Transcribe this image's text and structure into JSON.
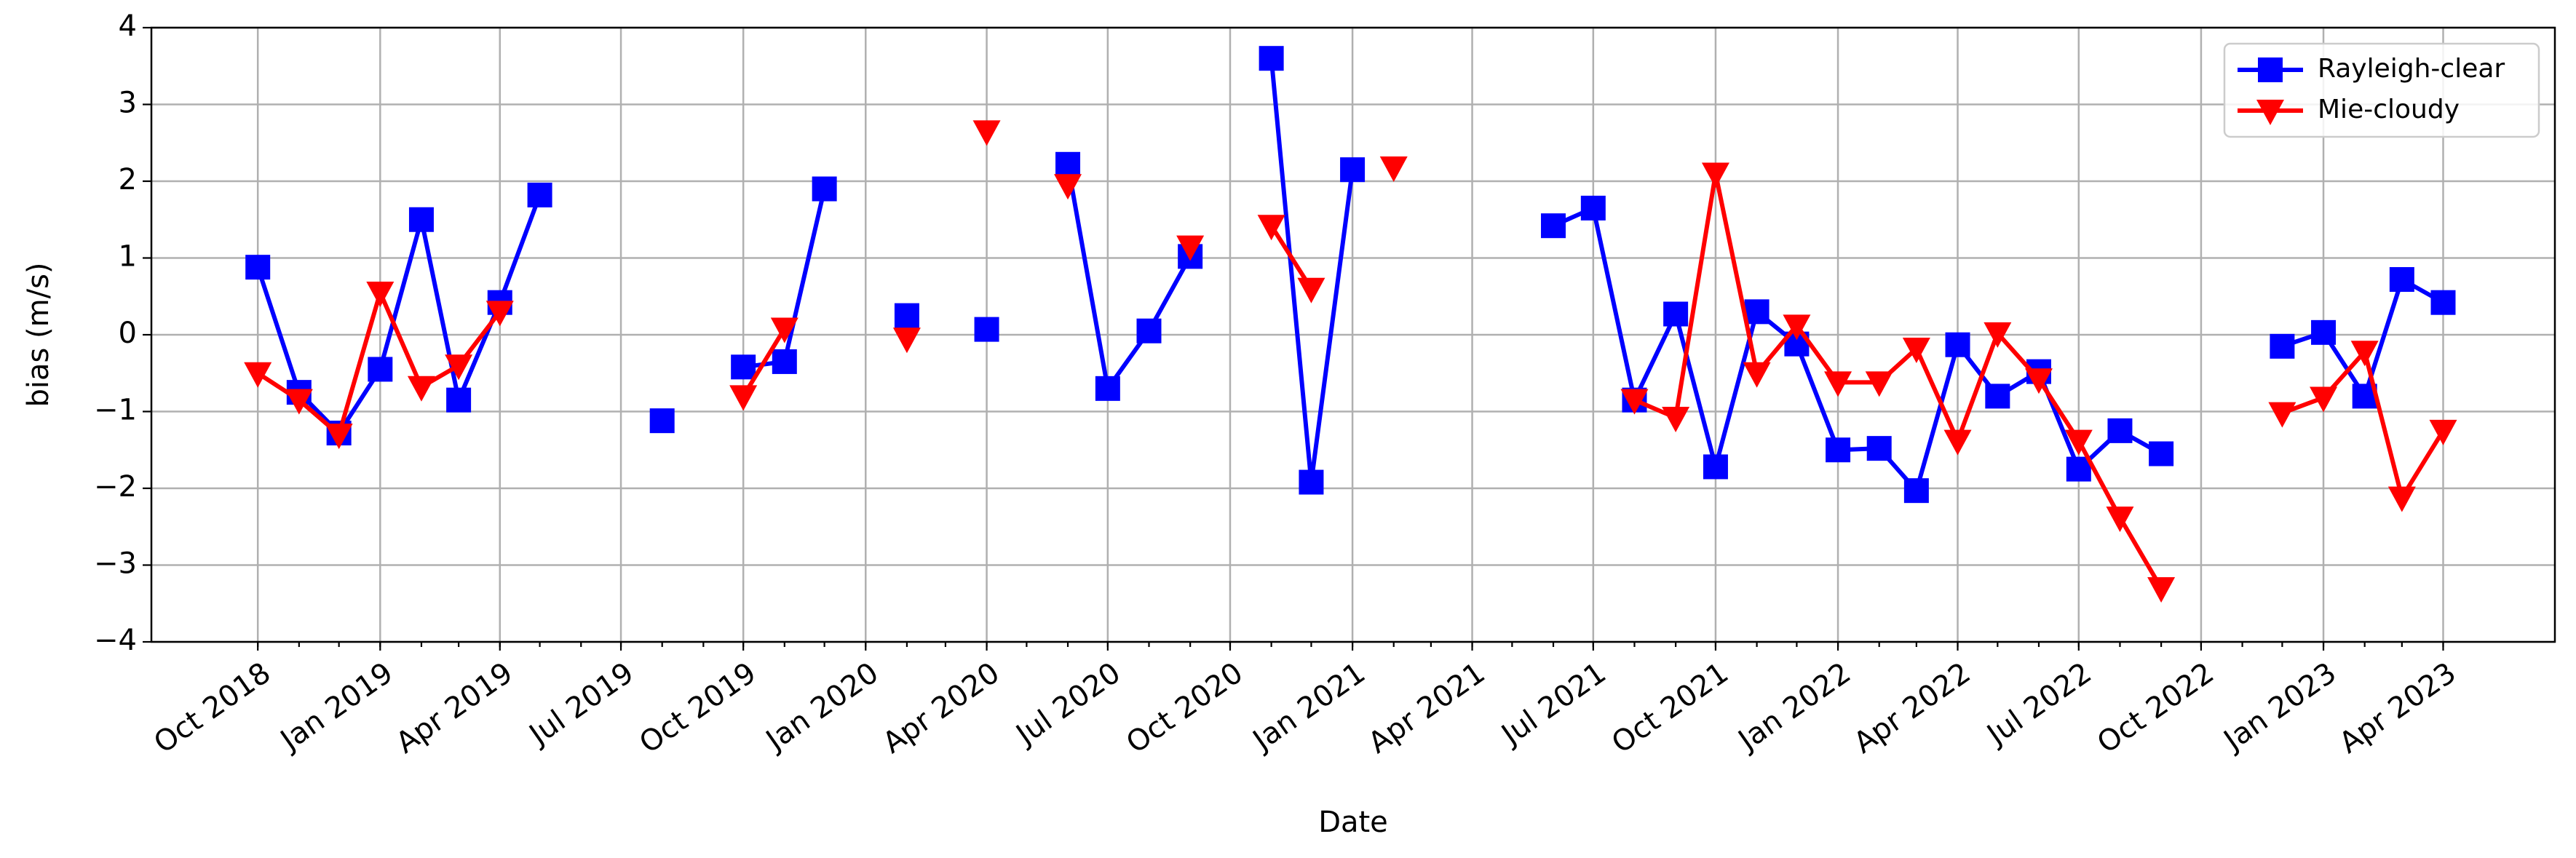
{
  "chart_data": {
    "type": "line",
    "xlabel": "Date",
    "ylabel": "bias (m/s)",
    "x": [
      "2018-10",
      "2018-11",
      "2018-12",
      "2019-01",
      "2019-02",
      "2019-03",
      "2019-04",
      "2019-05",
      "2019-06",
      "2019-07",
      "2019-08",
      "2019-09",
      "2019-10",
      "2019-11",
      "2019-12",
      "2020-01",
      "2020-02",
      "2020-03",
      "2020-04",
      "2020-05",
      "2020-06",
      "2020-07",
      "2020-08",
      "2020-09",
      "2020-10",
      "2020-11",
      "2020-12",
      "2021-01",
      "2021-02",
      "2021-03",
      "2021-04",
      "2021-05",
      "2021-06",
      "2021-07",
      "2021-08",
      "2021-09",
      "2021-10",
      "2021-11",
      "2021-12",
      "2022-01",
      "2022-02",
      "2022-03",
      "2022-04",
      "2022-05",
      "2022-06",
      "2022-07",
      "2022-08",
      "2022-09",
      "2022-10",
      "2022-11",
      "2022-12",
      "2023-01",
      "2023-02",
      "2023-03",
      "2023-04"
    ],
    "series": [
      {
        "name": "Rayleigh-clear",
        "color": "#0000ff",
        "marker": "square",
        "values": [
          0.88,
          -0.75,
          -1.28,
          -0.45,
          1.5,
          -0.85,
          0.42,
          1.82,
          null,
          null,
          -1.12,
          null,
          -0.42,
          -0.35,
          1.9,
          null,
          0.25,
          null,
          0.07,
          null,
          2.22,
          -0.7,
          0.05,
          1.02,
          null,
          3.6,
          -1.92,
          2.15,
          null,
          null,
          null,
          null,
          1.42,
          1.65,
          -0.85,
          0.27,
          -1.72,
          0.3,
          -0.12,
          -1.5,
          -1.48,
          -2.03,
          -0.13,
          -0.8,
          -0.48,
          -1.75,
          -1.25,
          -1.55,
          null,
          null,
          -0.15,
          0.03,
          -0.8,
          0.72,
          0.42
        ]
      },
      {
        "name": "Mie-cloudy",
        "color": "#ff0000",
        "marker": "triangle-down",
        "values": [
          -0.5,
          -0.85,
          -1.3,
          0.55,
          -0.68,
          -0.4,
          0.3,
          null,
          null,
          null,
          null,
          null,
          -0.8,
          0.08,
          null,
          null,
          -0.05,
          null,
          2.65,
          null,
          1.95,
          null,
          null,
          1.15,
          null,
          1.42,
          0.6,
          null,
          2.18,
          null,
          null,
          null,
          null,
          null,
          -0.85,
          -1.08,
          2.1,
          -0.5,
          0.12,
          -0.62,
          -0.62,
          -0.18,
          -1.38,
          0.02,
          -0.58,
          -1.38,
          -2.38,
          -3.3,
          null,
          null,
          -1.02,
          -0.82,
          -0.22,
          -2.12,
          -1.25
        ]
      }
    ],
    "xlim": [
      "2018-07-13",
      "2023-06-24"
    ],
    "xticks": [
      {
        "value": "2018-10",
        "label": "Oct 2018"
      },
      {
        "value": "2019-01",
        "label": "Jan 2019"
      },
      {
        "value": "2019-04",
        "label": "Apr 2019"
      },
      {
        "value": "2019-07",
        "label": "Jul 2019"
      },
      {
        "value": "2019-10",
        "label": "Oct 2019"
      },
      {
        "value": "2020-01",
        "label": "Jan 2020"
      },
      {
        "value": "2020-04",
        "label": "Apr 2020"
      },
      {
        "value": "2020-07",
        "label": "Jul 2020"
      },
      {
        "value": "2020-10",
        "label": "Oct 2020"
      },
      {
        "value": "2021-01",
        "label": "Jan 2021"
      },
      {
        "value": "2021-04",
        "label": "Apr 2021"
      },
      {
        "value": "2021-07",
        "label": "Jul 2021"
      },
      {
        "value": "2021-10",
        "label": "Oct 2021"
      },
      {
        "value": "2022-01",
        "label": "Jan 2022"
      },
      {
        "value": "2022-04",
        "label": "Apr 2022"
      },
      {
        "value": "2022-07",
        "label": "Jul 2022"
      },
      {
        "value": "2022-10",
        "label": "Oct 2022"
      },
      {
        "value": "2023-01",
        "label": "Jan 2023"
      },
      {
        "value": "2023-04",
        "label": "Apr 2023"
      }
    ],
    "ylim": [
      -4,
      4
    ],
    "yticks": [
      {
        "value": -4,
        "label": "−4"
      },
      {
        "value": -3,
        "label": "−3"
      },
      {
        "value": -2,
        "label": "−2"
      },
      {
        "value": -1,
        "label": "−1"
      },
      0,
      1,
      2,
      3,
      4
    ],
    "grid": true,
    "legend": "upper right"
  }
}
